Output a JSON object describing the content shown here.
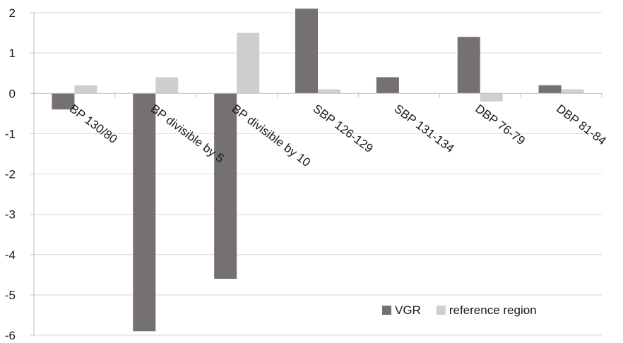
{
  "chart_data": {
    "type": "bar",
    "title": "",
    "xlabel": "",
    "ylabel": "",
    "ylim": [
      -6,
      2
    ],
    "yticks": [
      2,
      1,
      0,
      -1,
      -2,
      -3,
      -4,
      -5,
      -6
    ],
    "grid": true,
    "legend_position": "bottom-right",
    "categories": [
      "BP 130/80",
      "BP divisible by 5",
      "BP divisible by 10",
      "SBP 126-129",
      "SBP 131-134",
      "DBP 76-79",
      "DBP 81-84"
    ],
    "series": [
      {
        "name": "VGR",
        "color": "#767171",
        "values": [
          -0.4,
          -5.9,
          -4.6,
          2.1,
          0.4,
          1.4,
          0.2
        ]
      },
      {
        "name": "reference region",
        "color": "#d0cece",
        "values": [
          0.2,
          0.4,
          1.5,
          0.1,
          0.0,
          -0.2,
          0.1
        ]
      }
    ]
  }
}
